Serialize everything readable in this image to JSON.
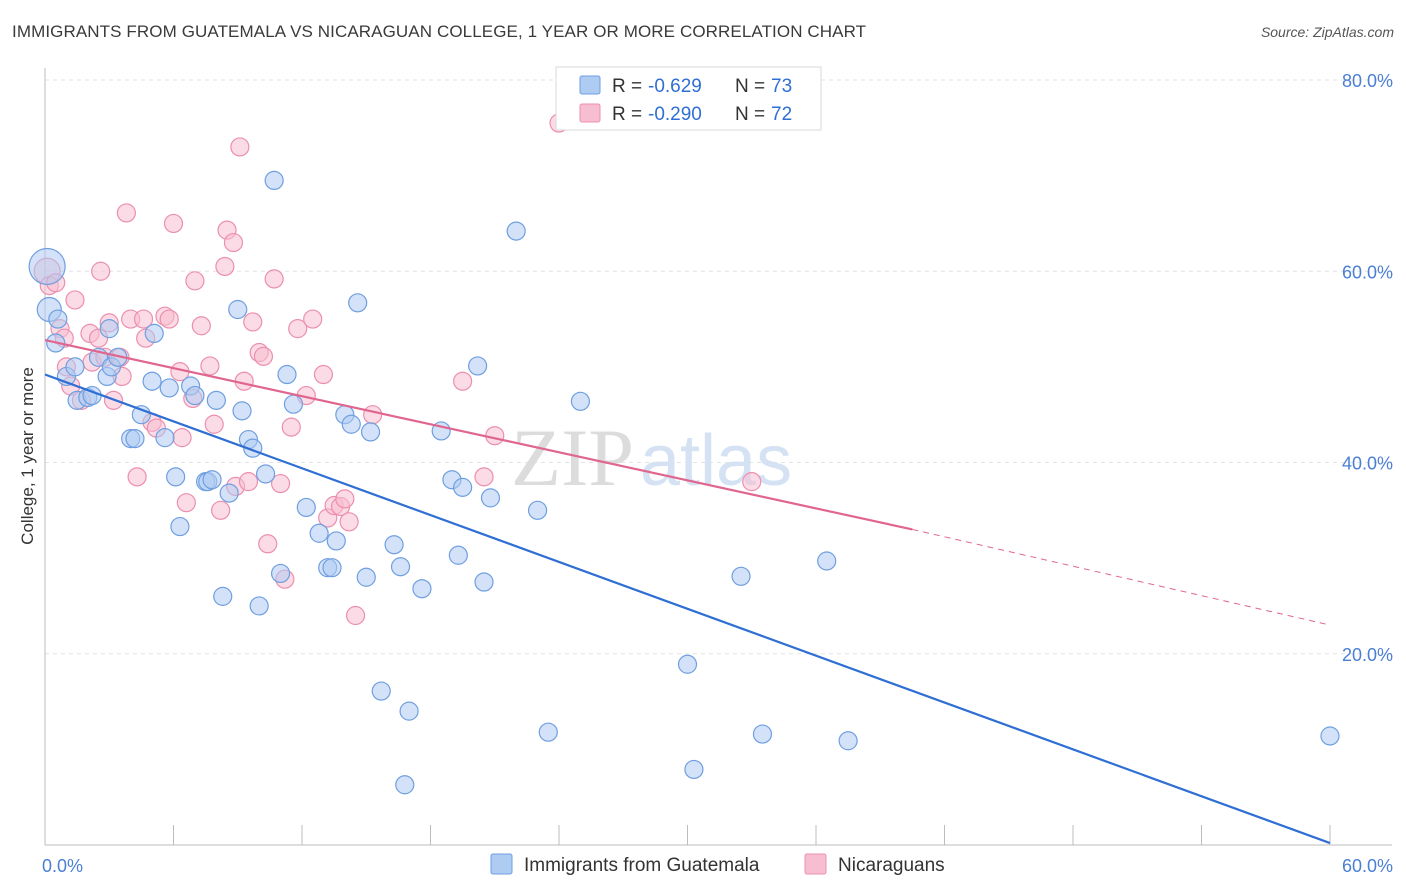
{
  "title": "IMMIGRANTS FROM GUATEMALA VS NICARAGUAN COLLEGE, 1 YEAR OR MORE CORRELATION CHART",
  "source": "Source: ZipAtlas.com",
  "watermark": {
    "zip": "ZIP",
    "atlas": "atlas"
  },
  "chart_data": {
    "type": "scatter",
    "xlabel": "",
    "ylabel": "College, 1 year or more",
    "xlim": [
      0,
      60
    ],
    "ylim": [
      0,
      80
    ],
    "x_tick_labels": [
      {
        "value": 0,
        "label": "0.0%"
      },
      {
        "value": 60,
        "label": "60.0%"
      }
    ],
    "y_tick_labels": [
      {
        "value": 80,
        "label": "80.0%"
      },
      {
        "value": 60,
        "label": "60.0%"
      },
      {
        "value": 40,
        "label": "40.0%"
      },
      {
        "value": 20,
        "label": "20.0%"
      }
    ],
    "grid": true,
    "legend_position": "top-center",
    "colors": {
      "blue_fill": "#aecbf2",
      "blue_stroke": "#6f9fe0",
      "blue_line": "#2f6fd4",
      "pink_fill": "#f7bdd0",
      "pink_stroke": "#ec8fae",
      "pink_line": "#e06690",
      "axis_text": "#4a7fd4"
    },
    "stats": [
      {
        "r_label": "R =",
        "r": "-0.629",
        "n_label": "N =",
        "n": "73"
      },
      {
        "r_label": "R =",
        "r": "-0.290",
        "n_label": "N =",
        "n": "72"
      }
    ],
    "series": [
      {
        "name": "Immigrants from Guatemala",
        "color": "#aecbf2",
        "trend": {
          "x0": 0,
          "y0": 49.2,
          "x1": 60,
          "y1": 0.2
        },
        "points": [
          [
            0.1,
            60.5,
            18
          ],
          [
            0.2,
            56,
            12
          ],
          [
            0.5,
            52.5,
            9
          ],
          [
            0.6,
            55,
            9
          ],
          [
            1,
            49,
            9
          ],
          [
            1.4,
            50,
            9
          ],
          [
            1.5,
            46.5,
            9
          ],
          [
            2,
            46.8,
            9
          ],
          [
            2.2,
            47,
            9
          ],
          [
            2.5,
            51,
            9
          ],
          [
            2.9,
            49,
            9
          ],
          [
            3,
            54,
            9
          ],
          [
            3.1,
            50,
            9
          ],
          [
            3.4,
            51,
            9
          ],
          [
            4,
            42.5,
            9
          ],
          [
            4.2,
            42.5,
            9
          ],
          [
            4.5,
            45,
            9
          ],
          [
            5,
            48.5,
            9
          ],
          [
            5.1,
            53.5,
            9
          ],
          [
            5.6,
            42.6,
            9
          ],
          [
            5.8,
            47.8,
            9
          ],
          [
            6.1,
            38.5,
            9
          ],
          [
            6.3,
            33.3,
            9
          ],
          [
            6.8,
            48,
            9
          ],
          [
            7,
            47,
            9
          ],
          [
            7.5,
            38,
            9
          ],
          [
            7.6,
            38,
            9
          ],
          [
            7.8,
            38.2,
            9
          ],
          [
            8,
            46.5,
            9
          ],
          [
            8.3,
            26,
            9
          ],
          [
            8.6,
            36.8,
            9
          ],
          [
            9,
            56,
            9
          ],
          [
            9.2,
            45.4,
            9
          ],
          [
            9.5,
            42.4,
            9
          ],
          [
            9.7,
            41.5,
            9
          ],
          [
            10,
            25,
            9
          ],
          [
            10.3,
            38.8,
            9
          ],
          [
            10.7,
            69.5,
            9
          ],
          [
            11,
            28.4,
            9
          ],
          [
            11.3,
            49.2,
            9
          ],
          [
            11.6,
            46.1,
            9
          ],
          [
            12.2,
            35.3,
            9
          ],
          [
            12.8,
            32.6,
            9
          ],
          [
            13.2,
            29,
            9
          ],
          [
            13.4,
            29,
            9
          ],
          [
            13.6,
            31.8,
            9
          ],
          [
            14,
            45,
            9
          ],
          [
            14.3,
            44,
            9
          ],
          [
            14.6,
            56.7,
            9
          ],
          [
            15,
            28,
            9
          ],
          [
            15.2,
            43.2,
            9
          ],
          [
            15.7,
            16.1,
            9
          ],
          [
            16.3,
            31.4,
            9
          ],
          [
            16.6,
            29.1,
            9
          ],
          [
            16.8,
            6.3,
            9
          ],
          [
            17,
            14,
            9
          ],
          [
            17.6,
            26.8,
            9
          ],
          [
            18.5,
            43.3,
            9
          ],
          [
            19,
            38.2,
            9
          ],
          [
            19.3,
            30.3,
            9
          ],
          [
            19.5,
            37.4,
            9
          ],
          [
            20.2,
            50.1,
            9
          ],
          [
            20.5,
            27.5,
            9
          ],
          [
            20.8,
            36.3,
            9
          ],
          [
            22,
            64.2,
            9
          ],
          [
            23,
            35,
            9
          ],
          [
            23.5,
            11.8,
            9
          ],
          [
            25,
            46.4,
            9
          ],
          [
            30,
            18.9,
            9
          ],
          [
            30.3,
            7.9,
            9
          ],
          [
            32.5,
            28.1,
            9
          ],
          [
            33.5,
            11.6,
            9
          ],
          [
            36.5,
            29.7,
            9
          ],
          [
            37.5,
            10.9,
            9
          ],
          [
            60,
            11.4,
            9
          ]
        ]
      },
      {
        "name": "Nicaraguans",
        "color": "#f7bdd0",
        "trend": {
          "x0": 0,
          "y0": 52.8,
          "x1": 40.5,
          "y1": 33,
          "dash_x1": 60,
          "dash_y1": 23
        },
        "points": [
          [
            0.1,
            60,
            13
          ],
          [
            0.2,
            58.5,
            9
          ],
          [
            0.5,
            58.8,
            9
          ],
          [
            0.7,
            54,
            9
          ],
          [
            0.9,
            53,
            9
          ],
          [
            1,
            50,
            9
          ],
          [
            1.2,
            48,
            9
          ],
          [
            1.4,
            57,
            9
          ],
          [
            1.7,
            46.5,
            9
          ],
          [
            2.1,
            53.5,
            9
          ],
          [
            2.2,
            50.5,
            9
          ],
          [
            2.5,
            53,
            9
          ],
          [
            2.6,
            60,
            9
          ],
          [
            2.8,
            51,
            9
          ],
          [
            3,
            54.6,
            9
          ],
          [
            3.2,
            46.5,
            9
          ],
          [
            3.5,
            51,
            9
          ],
          [
            3.6,
            49,
            9
          ],
          [
            3.8,
            66.1,
            9
          ],
          [
            4,
            55,
            9
          ],
          [
            4.3,
            38.5,
            9
          ],
          [
            4.6,
            55,
            9
          ],
          [
            4.7,
            53,
            9
          ],
          [
            5,
            44.2,
            9
          ],
          [
            5.2,
            43.6,
            9
          ],
          [
            5.6,
            55.3,
            9
          ],
          [
            5.8,
            55,
            9
          ],
          [
            6,
            65,
            9
          ],
          [
            6.3,
            49.5,
            9
          ],
          [
            6.4,
            42.6,
            9
          ],
          [
            6.6,
            35.8,
            9
          ],
          [
            6.9,
            46.7,
            9
          ],
          [
            7,
            59,
            9
          ],
          [
            7.3,
            54.3,
            9
          ],
          [
            7.7,
            50.1,
            9
          ],
          [
            7.9,
            44,
            9
          ],
          [
            8.2,
            35,
            9
          ],
          [
            8.4,
            60.5,
            9
          ],
          [
            8.5,
            64.3,
            9
          ],
          [
            8.8,
            63,
            9
          ],
          [
            8.9,
            37.5,
            9
          ],
          [
            9.1,
            73,
            9
          ],
          [
            9.3,
            48.5,
            9
          ],
          [
            9.5,
            38,
            9
          ],
          [
            9.7,
            54.7,
            9
          ],
          [
            10,
            51.5,
            9
          ],
          [
            10.2,
            51.1,
            9
          ],
          [
            10.4,
            31.5,
            9
          ],
          [
            10.7,
            59.2,
            9
          ],
          [
            11,
            37.8,
            9
          ],
          [
            11.2,
            27.8,
            9
          ],
          [
            11.5,
            43.7,
            9
          ],
          [
            11.8,
            54,
            9
          ],
          [
            12.2,
            47,
            9
          ],
          [
            12.5,
            55,
            9
          ],
          [
            13,
            49.2,
            9
          ],
          [
            13.2,
            34.2,
            9
          ],
          [
            13.5,
            35.5,
            9
          ],
          [
            13.8,
            35.4,
            9
          ],
          [
            14,
            36.2,
            9
          ],
          [
            14.2,
            33.8,
            9
          ],
          [
            14.5,
            24,
            9
          ],
          [
            15.3,
            45,
            9
          ],
          [
            19.5,
            48.5,
            9
          ],
          [
            20.5,
            38.5,
            9
          ],
          [
            21,
            42.8,
            9
          ],
          [
            24,
            75.5,
            9
          ],
          [
            33,
            38,
            9
          ]
        ]
      }
    ]
  }
}
